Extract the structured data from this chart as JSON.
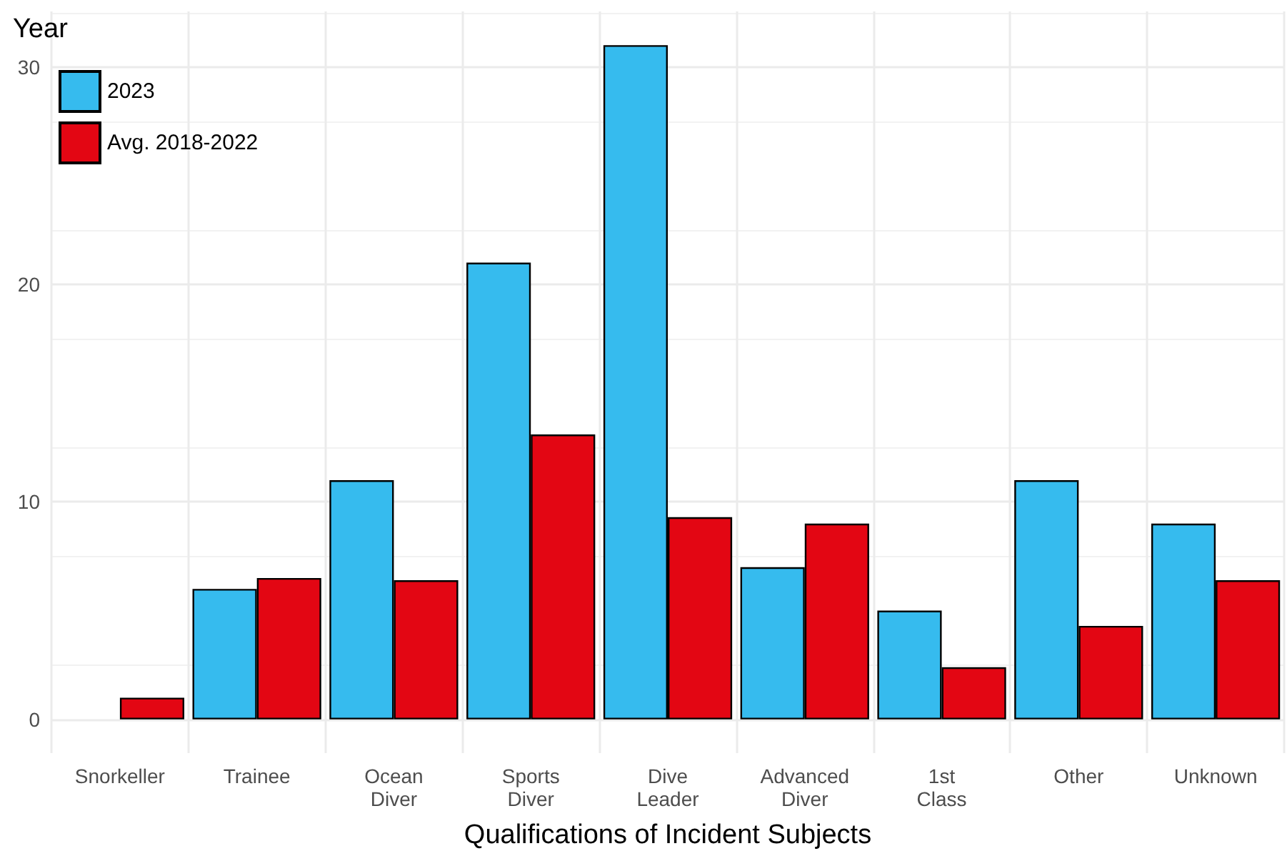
{
  "chart_data": {
    "type": "bar",
    "xlabel": "Qualifications of Incident Subjects",
    "legend_title": "Year",
    "categories": [
      "Snorkeller",
      "Trainee",
      "Ocean\nDiver",
      "Sports\nDiver",
      "Dive\nLeader",
      "Advanced\nDiver",
      "1st\nClass",
      "Other",
      "Unknown"
    ],
    "series": [
      {
        "name": "2023",
        "color": "#36bbee",
        "values": [
          null,
          6,
          11,
          21,
          31,
          7,
          5,
          11,
          9
        ]
      },
      {
        "name": "Avg. 2018-2022",
        "color": "#e30613",
        "values": [
          1,
          6.5,
          6.4,
          13.1,
          9.3,
          9,
          2.4,
          4.3,
          6.4
        ]
      }
    ],
    "ylim": [
      -1.55,
      32.55
    ],
    "yticks": [
      0,
      10,
      20,
      30
    ],
    "grid": true,
    "legend": "top left"
  }
}
